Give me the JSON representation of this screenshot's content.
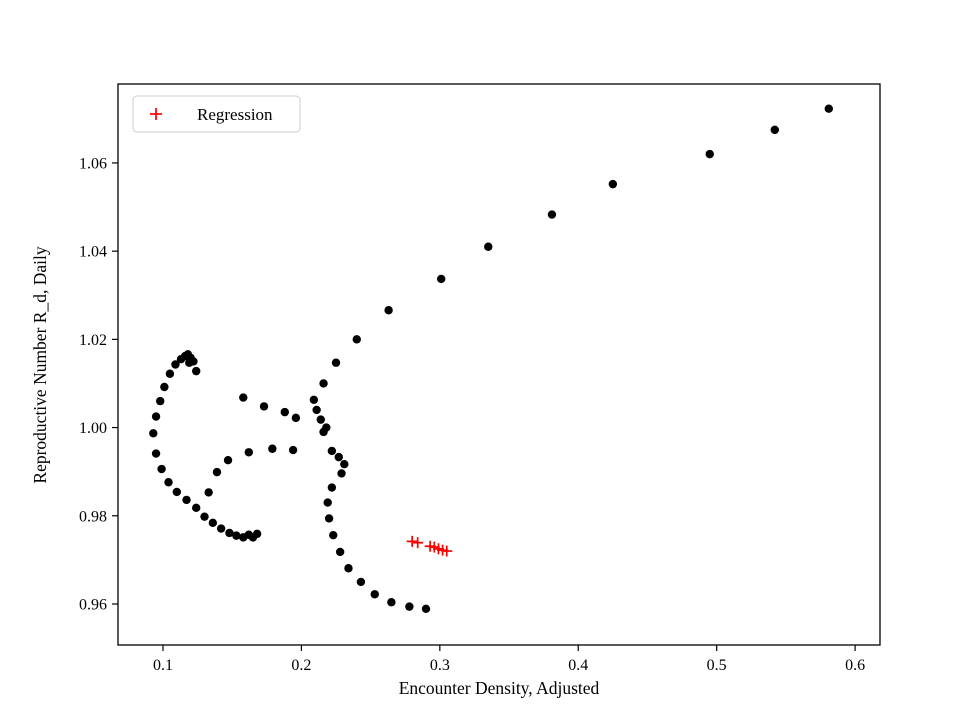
{
  "chart_data": {
    "type": "scatter",
    "title": "",
    "xlabel": "Encounter Density, Adjusted",
    "ylabel": "Reproductive Number R_d, Daily",
    "xlim": [
      0.0675,
      0.618
    ],
    "ylim": [
      0.9507,
      1.0779
    ],
    "grid": false,
    "x_ticks": [
      0.1,
      0.2,
      0.3,
      0.4,
      0.5,
      0.6
    ],
    "x_tick_labels": [
      "0.1",
      "0.2",
      "0.3",
      "0.4",
      "0.5",
      "0.6"
    ],
    "y_ticks": [
      0.96,
      0.98,
      1.0,
      1.02,
      1.04,
      1.06
    ],
    "y_tick_labels": [
      "0.96",
      "0.98",
      "1.00",
      "1.02",
      "1.04",
      "1.06"
    ],
    "legend": {
      "position": "upper left",
      "entries": [
        {
          "label": "Regression",
          "marker": "plus",
          "color": "#ff0000"
        }
      ]
    },
    "series": [
      {
        "name": "observations",
        "marker": "circle",
        "color": "#000000",
        "points": [
          [
            0.581,
            1.0723
          ],
          [
            0.542,
            1.0675
          ],
          [
            0.495,
            1.062
          ],
          [
            0.425,
            1.0552
          ],
          [
            0.381,
            1.0483
          ],
          [
            0.335,
            1.041
          ],
          [
            0.301,
            1.0337
          ],
          [
            0.263,
            1.0266
          ],
          [
            0.24,
            1.02
          ],
          [
            0.225,
            1.0147
          ],
          [
            0.216,
            1.01
          ],
          [
            0.209,
            1.0063
          ],
          [
            0.211,
            1.004
          ],
          [
            0.214,
            1.0018
          ],
          [
            0.218,
            1.0
          ],
          [
            0.216,
            0.999
          ],
          [
            0.196,
            1.0022
          ],
          [
            0.188,
            1.0035
          ],
          [
            0.173,
            1.0048
          ],
          [
            0.158,
            1.0068
          ],
          [
            0.093,
            0.9987
          ],
          [
            0.095,
            1.0025
          ],
          [
            0.098,
            1.006
          ],
          [
            0.101,
            1.0092
          ],
          [
            0.105,
            1.0122
          ],
          [
            0.109,
            1.0143
          ],
          [
            0.113,
            1.0155
          ],
          [
            0.116,
            1.0162
          ],
          [
            0.118,
            1.0166
          ],
          [
            0.12,
            1.0158
          ],
          [
            0.122,
            1.015
          ],
          [
            0.119,
            1.0147
          ],
          [
            0.124,
            1.0128
          ],
          [
            0.095,
            0.9941
          ],
          [
            0.099,
            0.9906
          ],
          [
            0.104,
            0.9876
          ],
          [
            0.11,
            0.9854
          ],
          [
            0.117,
            0.9836
          ],
          [
            0.124,
            0.9818
          ],
          [
            0.13,
            0.9798
          ],
          [
            0.136,
            0.9784
          ],
          [
            0.142,
            0.9771
          ],
          [
            0.148,
            0.9761
          ],
          [
            0.153,
            0.9755
          ],
          [
            0.158,
            0.9751
          ],
          [
            0.162,
            0.9757
          ],
          [
            0.165,
            0.9751
          ],
          [
            0.168,
            0.9759
          ],
          [
            0.133,
            0.9853
          ],
          [
            0.139,
            0.9899
          ],
          [
            0.147,
            0.9926
          ],
          [
            0.162,
            0.9944
          ],
          [
            0.179,
            0.9952
          ],
          [
            0.194,
            0.9949
          ],
          [
            0.222,
            0.9947
          ],
          [
            0.227,
            0.9933
          ],
          [
            0.231,
            0.9917
          ],
          [
            0.229,
            0.9896
          ],
          [
            0.222,
            0.9864
          ],
          [
            0.219,
            0.983
          ],
          [
            0.22,
            0.9794
          ],
          [
            0.223,
            0.9756
          ],
          [
            0.228,
            0.9718
          ],
          [
            0.234,
            0.9681
          ],
          [
            0.243,
            0.965
          ],
          [
            0.253,
            0.9622
          ],
          [
            0.265,
            0.9604
          ],
          [
            0.278,
            0.9594
          ],
          [
            0.29,
            0.9589
          ]
        ]
      },
      {
        "name": "regression",
        "marker": "plus",
        "color": "#ff0000",
        "points": [
          [
            0.28,
            0.9742
          ],
          [
            0.284,
            0.9739
          ],
          [
            0.293,
            0.9731
          ],
          [
            0.296,
            0.9729
          ],
          [
            0.299,
            0.9725
          ],
          [
            0.302,
            0.9722
          ],
          [
            0.305,
            0.972
          ]
        ]
      }
    ]
  }
}
